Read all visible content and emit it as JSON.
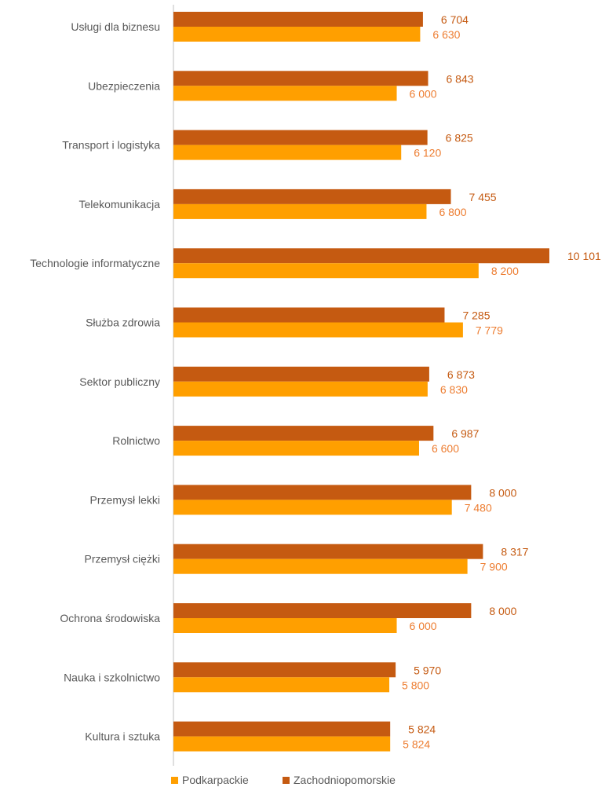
{
  "chart_data": {
    "type": "bar",
    "orientation": "horizontal",
    "title": "",
    "xlabel": "",
    "ylabel": "",
    "categories": [
      "Usługi dla biznesu",
      "Ubezpieczenia",
      "Transport i logistyka",
      "Telekomunikacja",
      "Technologie informatyczne",
      "Służba zdrowia",
      "Sektor publiczny",
      "Rolnictwo",
      "Przemysł lekki",
      "Przemysł ciężki",
      "Ochrona środowiska",
      "Nauka i szkolnictwo",
      "Kultura i sztuka"
    ],
    "series": [
      {
        "name": "Zachodniopomorskie",
        "color": "#C55A11",
        "values": [
          6704,
          6843,
          6825,
          7455,
          10101,
          7285,
          6873,
          6987,
          8000,
          8317,
          8000,
          5970,
          5824
        ],
        "labels": [
          "6 704",
          "6 843",
          "6 825",
          "7 455",
          "10 101",
          "7 285",
          "6 873",
          "6 987",
          "8 000",
          "8 317",
          "8 000",
          "5 970",
          "5 824"
        ]
      },
      {
        "name": "Podkarpackie",
        "color": "#FF9F00",
        "values": [
          6630,
          6000,
          6120,
          6800,
          8200,
          7779,
          6830,
          6600,
          7480,
          7900,
          6000,
          5800,
          5824
        ],
        "labels": [
          "6 630",
          "6 000",
          "6 120",
          "6 800",
          "8 200",
          "7 779",
          "6 830",
          "6 600",
          "7 480",
          "7 900",
          "6 000",
          "5 800",
          "5 824"
        ]
      }
    ],
    "legend": {
      "position": "bottom",
      "items": [
        {
          "name": "Podkarpackie",
          "color": "#FF9F00"
        },
        {
          "name": "Zachodniopomorskie",
          "color": "#C55A11"
        }
      ]
    },
    "label_colors": {
      "Zachodniopomorskie": "#C55A11",
      "Podkarpackie": "#ED7D31"
    },
    "grid": false,
    "xlim": [
      0,
      10101
    ]
  }
}
